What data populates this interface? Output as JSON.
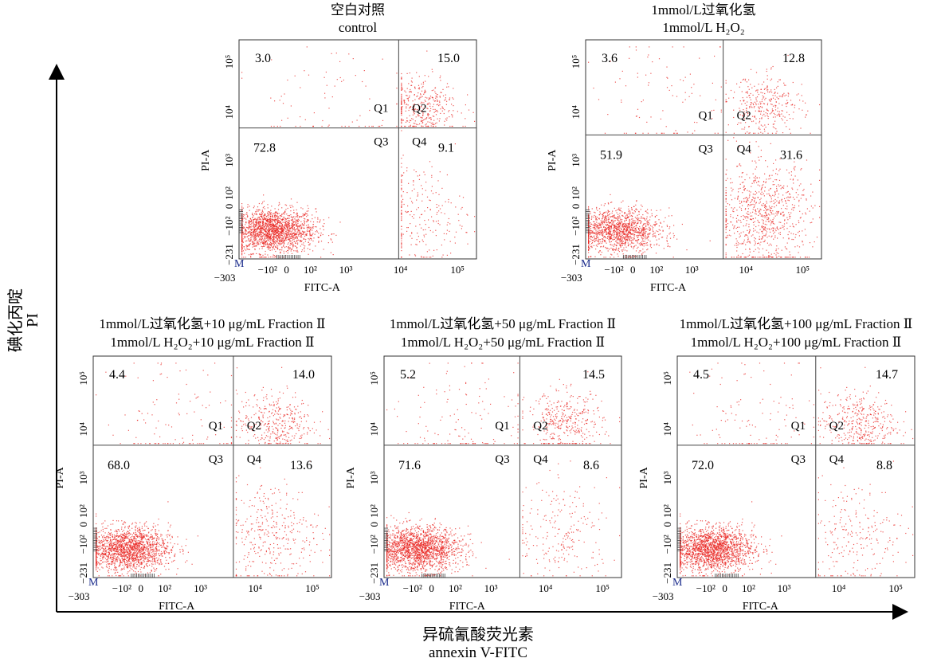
{
  "figure": {
    "y_axis_title_cn": "碘化丙啶",
    "y_axis_title_en": "PI",
    "x_axis_title_cn": "异硫氰酸荧光素",
    "x_axis_title_en": "annexin V-FITC"
  },
  "colors": {
    "dots": "#e8231f",
    "frame": "#333333",
    "marker_M": "#1a2b8c"
  },
  "chart_data": [
    {
      "type": "scatter",
      "title_cn": "空白对照",
      "title_en": "control",
      "xlabel": "FITC-A",
      "ylabel": "PI-A",
      "x_ticks": [
        "−303",
        "−10²",
        "0",
        "10²",
        "10³",
        "10⁴",
        "10⁵"
      ],
      "y_ticks": [
        "−231",
        "−10²",
        "0",
        "10²",
        "10³",
        "10⁴",
        "10⁵"
      ],
      "gate_marker": "M",
      "quadrants": {
        "Q1": 3.0,
        "Q2": 15.0,
        "Q3": 72.8,
        "Q4": 9.1
      },
      "quadrant_labels": [
        "Q1",
        "Q2",
        "Q3",
        "Q4"
      ],
      "quadrant_values_text": [
        "3.0",
        "15.0",
        "72.8",
        "9.1"
      ],
      "gate": {
        "x": 2300,
        "y": 1000
      }
    },
    {
      "type": "scatter",
      "title_cn": "1mmol/L过氧化氢",
      "title_en": "1mmol/L H₂O₂",
      "xlabel": "FITC-A",
      "ylabel": "PI-A",
      "x_ticks": [
        "−303",
        "−10²",
        "0",
        "10²",
        "10³",
        "10⁴",
        "10⁵"
      ],
      "y_ticks": [
        "−231",
        "−10²",
        "0",
        "10²",
        "10³",
        "10⁴",
        "10⁵"
      ],
      "gate_marker": "M",
      "quadrants": {
        "Q1": 3.6,
        "Q2": 12.8,
        "Q3": 51.9,
        "Q4": 31.6
      },
      "quadrant_labels": [
        "Q1",
        "Q2",
        "Q3",
        "Q4"
      ],
      "quadrant_values_text": [
        "3.6",
        "12.8",
        "51.9",
        "31.6"
      ],
      "gate": {
        "x": 850,
        "y": 700
      }
    },
    {
      "type": "scatter",
      "title_cn": "1mmol/L过氧化氢+10 μg/mL Fraction Ⅱ",
      "title_en": "1mmol/L H₂O₂+10 μg/mL Fraction Ⅱ",
      "xlabel": "FITC-A",
      "ylabel": "PI-A",
      "x_ticks": [
        "−303",
        "−10²",
        "0",
        "10²",
        "10³",
        "10⁴",
        "10⁵"
      ],
      "y_ticks": [
        "−231",
        "−10²",
        "0",
        "10²",
        "10³",
        "10⁴",
        "10⁵"
      ],
      "gate_marker": "M",
      "quadrants": {
        "Q1": 4.4,
        "Q2": 14.0,
        "Q3": 68.0,
        "Q4": 13.6
      },
      "quadrant_labels": [
        "Q1",
        "Q2",
        "Q3",
        "Q4"
      ],
      "quadrant_values_text": [
        "4.4",
        "14.0",
        "68.0",
        "13.6"
      ],
      "gate": {
        "x": 900,
        "y": 1000
      }
    },
    {
      "type": "scatter",
      "title_cn": "1mmol/L过氧化氢+50 μg/mL Fraction Ⅱ",
      "title_en": "1mmol/L H₂O₂+50 μg/mL Fraction Ⅱ",
      "xlabel": "FITC-A",
      "ylabel": "PI-A",
      "x_ticks": [
        "−303",
        "−10²",
        "0",
        "10²",
        "10³",
        "10⁴",
        "10⁵"
      ],
      "y_ticks": [
        "−231",
        "−10²",
        "0",
        "10²",
        "10³",
        "10⁴",
        "10⁵"
      ],
      "gate_marker": "M",
      "quadrants": {
        "Q1": 5.2,
        "Q2": 14.5,
        "Q3": 71.6,
        "Q4": 8.6
      },
      "quadrant_labels": [
        "Q1",
        "Q2",
        "Q3",
        "Q4"
      ],
      "quadrant_values_text": [
        "5.2",
        "14.5",
        "71.6",
        "8.6"
      ],
      "gate": {
        "x": 750,
        "y": 1000
      }
    },
    {
      "type": "scatter",
      "title_cn": "1mmol/L过氧化氢+100 μg/mL Fraction Ⅱ",
      "title_en": "1mmol/L H₂O₂+100 μg/mL Fraction Ⅱ",
      "xlabel": "FITC-A",
      "ylabel": "PI-A",
      "x_ticks": [
        "−303",
        "−10²",
        "0",
        "10²",
        "10³",
        "10⁴",
        "10⁵"
      ],
      "y_ticks": [
        "−231",
        "−10²",
        "0",
        "10²",
        "10³",
        "10⁴",
        "10⁵"
      ],
      "gate_marker": "M",
      "quadrants": {
        "Q1": 4.5,
        "Q2": 14.7,
        "Q3": 72.0,
        "Q4": 8.8
      },
      "quadrant_labels": [
        "Q1",
        "Q2",
        "Q3",
        "Q4"
      ],
      "quadrant_values_text": [
        "4.5",
        "14.7",
        "72.0",
        "8.8"
      ],
      "gate": {
        "x": 850,
        "y": 1000
      }
    }
  ]
}
